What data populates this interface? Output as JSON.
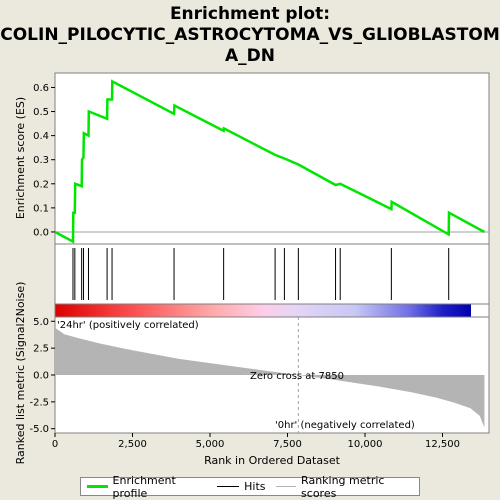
{
  "title_lines": [
    "Enrichment plot:",
    "COLIN_PILOCYTIC_ASTROCYTOMA_VS_GLIOBLASTOM",
    "A_DN"
  ],
  "colors": {
    "es_line": "#00e600",
    "hits": "#000000",
    "metric_fill": "#b4b4b4",
    "pos_label": "#b40000",
    "neg_label": "#0000b4"
  },
  "chart_data": [
    {
      "type": "line",
      "title": "",
      "xlabel": "",
      "ylabel": "Enrichment score (ES)",
      "xlim": [
        0,
        14000
      ],
      "ylim": [
        -0.05,
        0.66
      ],
      "yticks": [
        0.0,
        0.1,
        0.2,
        0.3,
        0.4,
        0.5,
        0.6
      ],
      "ytick_labels": [
        "0.0",
        "0.1",
        "0.2",
        "0.3",
        "0.4",
        "0.5",
        "0.6"
      ],
      "series": [
        {
          "name": "Enrichment profile",
          "x": [
            0,
            580,
            590,
            640,
            650,
            860,
            870,
            920,
            930,
            1080,
            1090,
            1680,
            1690,
            1840,
            1850,
            3840,
            3850,
            5440,
            5450,
            7100,
            7400,
            7850,
            9050,
            9200,
            10850,
            10860,
            12700,
            12710,
            13850
          ],
          "y": [
            0.0,
            -0.04,
            0.08,
            0.08,
            0.2,
            0.19,
            0.3,
            0.31,
            0.41,
            0.4,
            0.5,
            0.47,
            0.55,
            0.55,
            0.625,
            0.49,
            0.525,
            0.42,
            0.43,
            0.32,
            0.305,
            0.28,
            0.195,
            0.2,
            0.095,
            0.125,
            -0.01,
            0.08,
            0.0
          ]
        }
      ],
      "hits": [
        580,
        640,
        860,
        920,
        1080,
        1680,
        1840,
        3840,
        5440,
        7100,
        7400,
        7850,
        9050,
        9200,
        10850,
        12700
      ]
    },
    {
      "type": "area",
      "title": "",
      "xlabel": "Rank in Ordered Dataset",
      "ylabel": "Ranked list metric (Signal2Noise)",
      "xlim": [
        0,
        14000
      ],
      "ylim": [
        -5.4,
        5.4
      ],
      "xticks": [
        0,
        2500,
        5000,
        7500,
        10000,
        12500
      ],
      "xtick_labels": [
        "0",
        "2,500",
        "5,000",
        "7,500",
        "10,000",
        "12,500"
      ],
      "yticks": [
        -5.0,
        -2.5,
        0.0,
        2.5,
        5.0
      ],
      "ytick_labels": [
        "-5.0",
        "-2.5",
        "0.0",
        "2.5",
        "5.0"
      ],
      "x": [
        0,
        300,
        800,
        1500,
        2500,
        4000,
        5500,
        6800,
        7850,
        9000,
        10500,
        11500,
        12300,
        12900,
        13400,
        13700,
        13850
      ],
      "y": [
        4.4,
        3.8,
        3.4,
        2.9,
        2.3,
        1.5,
        0.9,
        0.4,
        0.0,
        -0.45,
        -1.1,
        -1.6,
        -2.1,
        -2.6,
        -3.1,
        -3.8,
        -4.9
      ],
      "zero_cross": 7850,
      "annotations": [
        "Zero cross at 7850",
        "'24hr' (positively correlated)",
        "'0hr' (negatively correlated)"
      ]
    }
  ],
  "legend": {
    "items": [
      {
        "label": "Enrichment profile"
      },
      {
        "label": "Hits"
      },
      {
        "label": "Ranking metric scores"
      }
    ]
  }
}
